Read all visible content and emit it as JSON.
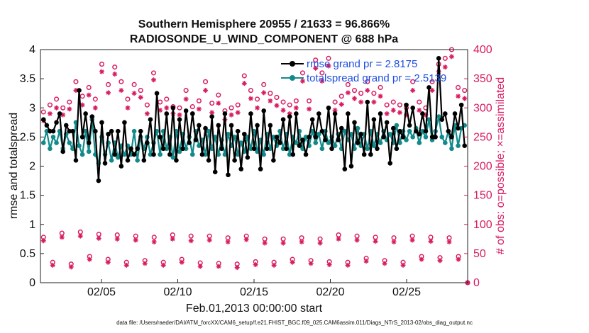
{
  "chart_data": {
    "type": "line",
    "title": "Southern Hemisphere 20955 / 21633 = 96.866%",
    "subtitle": "RADIOSONDE_U_WIND_COMPONENT @ 688 hPa",
    "xlabel": "Feb.01,2013 00:00:00 start",
    "ylabel_left": "rmse and totalspread",
    "ylabel_right": "# of obs: o=possible; ×=assimilated",
    "footer": "data file: /Users/raeder/DAI/ATM_forcXX/CAM6_setup/f.e21.FHIST_BGC.f09_025.CAM6assim.011/Diags_NTrS_2013-02/obs_diag_output.nc",
    "xlim": [
      1,
      29
    ],
    "ylim_left": [
      0,
      4
    ],
    "ylim_right": [
      0,
      400
    ],
    "xticks": [
      5,
      10,
      15,
      20,
      25
    ],
    "xtick_labels": [
      "02/05",
      "02/10",
      "02/15",
      "02/20",
      "02/25"
    ],
    "yticks_left": [
      "0",
      "0.5",
      "1",
      "1.5",
      "2",
      "2.5",
      "3",
      "3.5",
      "4"
    ],
    "yticks_right": [
      "0",
      "50",
      "100",
      "150",
      "200",
      "250",
      "300",
      "350",
      "400"
    ],
    "colors": {
      "rmse": "#000000",
      "spread": "#138a8a",
      "obs": "#d81b60",
      "legend_text": "#1f4fe0"
    },
    "legend": [
      {
        "label": "rmse grand pr = 2.8175",
        "series": "rmse"
      },
      {
        "label": "totalspread grand pr = 2.5139",
        "series": "totalspread"
      }
    ],
    "series": [
      {
        "name": "rmse",
        "axis": "left",
        "values": [
          2.8,
          2.7,
          2.6,
          2.6,
          2.75,
          2.9,
          2.25,
          2.7,
          2.6,
          2.6,
          2.1,
          3.3,
          2.5,
          2.9,
          2.4,
          2.85,
          2.6,
          1.75,
          2.75,
          2.05,
          2.55,
          2.6,
          2.2,
          2.6,
          2.0,
          2.75,
          2.1,
          2.3,
          2.2,
          2.3,
          2.6,
          2.1,
          2.4,
          2.8,
          2.2,
          3.25,
          2.5,
          2.3,
          2.9,
          2.2,
          3.0,
          2.1,
          2.8,
          2.3,
          2.95,
          2.4,
          2.9,
          2.45,
          2.7,
          2.2,
          2.65,
          2.1,
          2.85,
          1.9,
          2.7,
          2.3,
          2.9,
          1.85,
          2.7,
          2.1,
          2.6,
          1.95,
          2.55,
          2.15,
          2.9,
          2.3,
          2.7,
          1.95,
          2.95,
          2.3,
          2.7,
          2.1,
          2.5,
          2.4,
          2.8,
          2.3,
          2.85,
          2.2,
          2.9,
          2.35,
          2.45,
          2.2,
          2.5,
          2.8,
          2.5,
          2.9,
          2.6,
          2.45,
          3.0,
          2.3,
          2.9,
          2.45,
          2.65,
          1.95,
          2.9,
          2.0,
          2.75,
          2.4,
          2.55,
          2.2,
          3.1,
          2.2,
          2.8,
          2.3,
          2.9,
          2.5,
          2.75,
          2.05,
          2.65,
          2.3,
          2.6,
          2.5,
          3.05,
          2.7,
          3.0,
          2.6,
          2.55,
          2.9,
          2.6,
          3.35,
          2.5,
          2.5,
          3.85,
          2.8,
          2.9,
          2.6,
          2.5,
          2.9,
          2.65,
          3.05,
          2.35
        ]
      },
      {
        "name": "totalspread",
        "axis": "left",
        "values": [
          2.4,
          2.6,
          2.3,
          2.5,
          2.4,
          2.6,
          2.3,
          2.55,
          2.4,
          2.3,
          2.75,
          2.35,
          2.2,
          2.6,
          2.25,
          2.8,
          2.2,
          2.05,
          2.5,
          2.2,
          2.4,
          2.1,
          2.4,
          2.15,
          2.35,
          2.2,
          2.35,
          2.2,
          2.6,
          2.1,
          2.5,
          2.3,
          2.5,
          2.2,
          2.4,
          2.6,
          2.2,
          2.6,
          2.3,
          2.5,
          2.15,
          2.6,
          2.25,
          2.55,
          2.3,
          2.5,
          2.2,
          2.6,
          2.35,
          2.45,
          2.2,
          2.6,
          2.3,
          2.5,
          2.2,
          2.45,
          2.2,
          2.55,
          2.35,
          2.5,
          2.2,
          2.4,
          2.25,
          2.5,
          2.3,
          2.6,
          2.25,
          2.45,
          2.2,
          2.55,
          2.3,
          2.5,
          2.35,
          2.6,
          2.3,
          2.55,
          2.2,
          2.5,
          2.4,
          2.6,
          2.3,
          2.5,
          2.35,
          2.6,
          2.4,
          2.55,
          2.3,
          2.6,
          2.4,
          2.5,
          2.35,
          2.55,
          2.3,
          2.6,
          2.45,
          2.55,
          2.3,
          2.65,
          2.35,
          2.55,
          2.3,
          2.6,
          2.35,
          2.55,
          2.4,
          2.6,
          2.45,
          2.55,
          2.4,
          2.7,
          2.4,
          2.6,
          2.45,
          2.6,
          2.5,
          2.65,
          2.4,
          2.6,
          2.5,
          2.8,
          2.45,
          2.6,
          2.85,
          2.5,
          2.4,
          2.6,
          2.3,
          2.7,
          2.35,
          2.65,
          2.7
        ]
      },
      {
        "name": "obs_possible_high",
        "axis": "right",
        "marker": "o",
        "values": [
          293,
          305,
          315,
          300,
          310,
          345,
          320,
          335,
          315,
          375,
          340,
          370,
          345,
          315,
          340,
          330,
          305,
          360,
          310,
          315,
          302,
          300,
          330,
          302,
          312,
          345,
          308,
          322,
          295,
          300,
          305,
          355,
          330,
          315,
          340,
          325,
          318,
          310,
          305,
          312,
          360,
          312,
          382,
          360,
          385,
          310,
          320,
          340,
          330,
          325,
          345,
          325,
          335,
          305,
          310,
          305,
          300,
          345,
          310,
          300,
          345,
          375,
          385,
          400,
          335,
          330
        ]
      },
      {
        "name": "obs_assimilated_high",
        "axis": "right",
        "marker": "x",
        "values": [
          278,
          290,
          300,
          288,
          298,
          330,
          305,
          322,
          300,
          362,
          326,
          358,
          330,
          300,
          325,
          318,
          290,
          348,
          296,
          300,
          290,
          288,
          315,
          290,
          298,
          330,
          292,
          308,
          280,
          288,
          292,
          342,
          316,
          300,
          326,
          312,
          304,
          296,
          290,
          300,
          346,
          298,
          368,
          346,
          372,
          296,
          306,
          326,
          316,
          310,
          330,
          310,
          320,
          290,
          296,
          292,
          288,
          330,
          296,
          288,
          330,
          362,
          370,
          388,
          320,
          316
        ]
      },
      {
        "name": "obs_possible_low",
        "axis": "right",
        "marker": "o",
        "values": [
          78,
          35,
          85,
          32,
          87,
          45,
          83,
          40,
          82,
          35,
          80,
          38,
          78,
          35,
          82,
          40,
          80,
          34,
          80,
          33,
          77,
          32,
          80,
          36,
          75,
          35,
          75,
          40,
          77,
          38,
          75,
          36,
          82,
          35,
          80,
          42,
          78,
          38,
          77,
          35,
          80,
          45,
          78,
          43,
          77,
          45,
          0
        ]
      },
      {
        "name": "obs_assimilated_low",
        "axis": "right",
        "marker": "x",
        "values": [
          72,
          30,
          78,
          27,
          80,
          40,
          76,
          35,
          75,
          30,
          73,
          33,
          70,
          30,
          75,
          35,
          72,
          28,
          73,
          28,
          70,
          26,
          74,
          31,
          68,
          30,
          68,
          35,
          70,
          33,
          68,
          31,
          75,
          30,
          73,
          37,
          71,
          33,
          70,
          30,
          73,
          40,
          71,
          38,
          70,
          40,
          0
        ]
      }
    ]
  }
}
